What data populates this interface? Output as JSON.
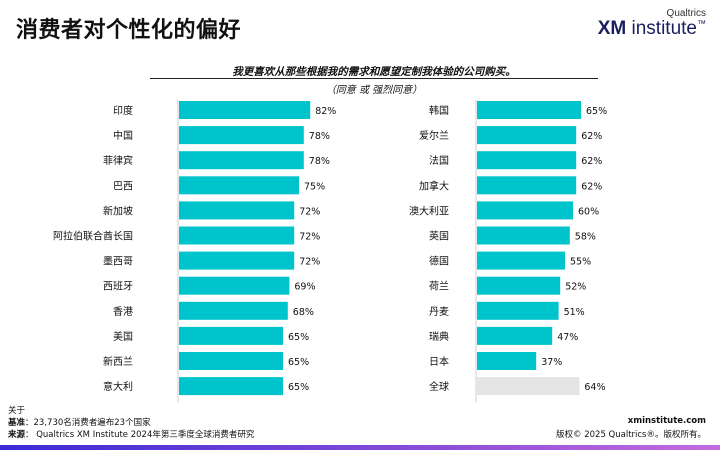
{
  "page": {
    "title": "消费者对个性化的偏好",
    "logo_top": "Qualtrics",
    "logo_main_bold": "XM",
    "logo_main_rest": " institute",
    "logo_tm": "™"
  },
  "chart_data": {
    "type": "bar",
    "orientation": "horizontal",
    "title": "我更喜欢从那些根据我的需求和愿望定制我体验的公司购买。",
    "subtitle": "（同意     或     强烈同意）",
    "value_suffix": "%",
    "xlim": [
      0,
      100
    ],
    "colors": {
      "bar": "#00C4CC",
      "highlight": "#E5E5E5"
    },
    "panels": [
      {
        "categories": [
          "印度",
          "中国",
          "菲律宾",
          "巴西",
          "新加坡",
          "阿拉伯联合酋长国",
          "墨西哥",
          "西班牙",
          "香港",
          "美国",
          "新西兰",
          "意大利"
        ],
        "values": [
          82,
          78,
          78,
          75,
          72,
          72,
          72,
          69,
          68,
          65,
          65,
          65
        ]
      },
      {
        "categories": [
          "韩国",
          "爱尔兰",
          "法国",
          "加拿大",
          "澳大利亚",
          "英国",
          "德国",
          "荷兰",
          "丹麦",
          "瑞典",
          "日本",
          "全球"
        ],
        "values": [
          65,
          62,
          62,
          62,
          60,
          58,
          55,
          52,
          51,
          47,
          37,
          64
        ],
        "highlight_category": "全球"
      }
    ]
  },
  "footer": {
    "about": "关于",
    "base_label": "基准",
    "base_text": "：23,730名消费者遍布23个国家",
    "source_label": "来源",
    "source_text": "：  Qualtrics XM Institute 2024年第三季度全球消费者研究",
    "site": "xminstitute.com",
    "copyright": "版权© 2025 Qualtrics®。版权所有。"
  }
}
